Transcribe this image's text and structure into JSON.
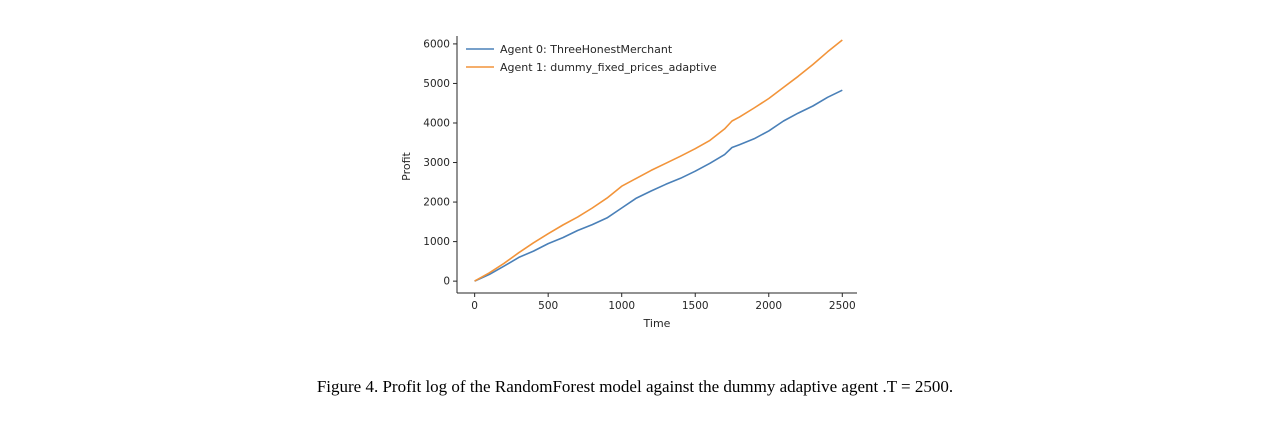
{
  "caption": "Figure 4. Profit log of the RandomForest  model against the dummy adaptive agent .T = 2500.",
  "chart_data": {
    "type": "line",
    "title": "",
    "xlabel": "Time",
    "ylabel": "Profit",
    "xlim": [
      -120,
      2600
    ],
    "ylim": [
      -300,
      6200
    ],
    "xticks": [
      0,
      500,
      1000,
      1500,
      2000,
      2500
    ],
    "yticks": [
      0,
      1000,
      2000,
      3000,
      4000,
      5000,
      6000
    ],
    "grid": false,
    "legend_position": "top-left",
    "series": [
      {
        "name": "Agent 0: ThreeHonestMerchant",
        "color": "#4a80b8",
        "x": [
          0,
          100,
          200,
          300,
          400,
          500,
          600,
          700,
          800,
          900,
          1000,
          1100,
          1200,
          1300,
          1400,
          1500,
          1600,
          1700,
          1750,
          1800,
          1900,
          2000,
          2100,
          2200,
          2300,
          2400,
          2500
        ],
        "y": [
          0,
          170,
          380,
          600,
          760,
          950,
          1100,
          1280,
          1430,
          1600,
          1850,
          2100,
          2280,
          2450,
          2600,
          2780,
          2980,
          3200,
          3380,
          3450,
          3600,
          3800,
          4050,
          4250,
          4430,
          4650,
          4830
        ]
      },
      {
        "name": "Agent 1: dummy_fixed_prices_adaptive",
        "color": "#f2943a",
        "x": [
          0,
          100,
          200,
          300,
          400,
          500,
          600,
          700,
          800,
          900,
          1000,
          1100,
          1200,
          1300,
          1400,
          1500,
          1600,
          1700,
          1750,
          1800,
          1900,
          2000,
          2100,
          2200,
          2300,
          2400,
          2500
        ],
        "y": [
          0,
          210,
          450,
          720,
          970,
          1200,
          1420,
          1620,
          1850,
          2100,
          2400,
          2600,
          2800,
          2980,
          3160,
          3350,
          3560,
          3850,
          4050,
          4150,
          4380,
          4620,
          4900,
          5180,
          5480,
          5800,
          6100
        ]
      }
    ]
  }
}
